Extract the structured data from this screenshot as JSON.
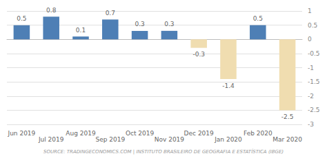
{
  "chart_data": {
    "type": "bar",
    "categories": [
      "Jun 2019",
      "Jul 2019",
      "Aug 2019",
      "Sep 2019",
      "Oct 2019",
      "Nov 2019",
      "Dec 2019",
      "Jan 2020",
      "Feb 2020",
      "Mar 2020"
    ],
    "values": [
      0.5,
      0.8,
      0.1,
      0.7,
      0.3,
      0.3,
      -0.3,
      -1.4,
      0.5,
      -2.5
    ],
    "colors": [
      "#4e7fb5",
      "#4e7fb5",
      "#4e7fb5",
      "#4e7fb5",
      "#4e7fb5",
      "#4e7fb5",
      "#f0ddb0",
      "#f0ddb0",
      "#4e7fb5",
      "#f0ddb0"
    ],
    "ylim": [
      -3,
      1
    ],
    "yticks": [
      1,
      0.5,
      0,
      -0.5,
      -1,
      -1.5,
      -2,
      -2.5,
      -3
    ],
    "grid": true,
    "data_labels": true,
    "annotations": [
      "SOURCE: TRADINGECONOMICS.COM | INSTITUTO BRASILEIRO DE GEOGRAFIA E ESTATÍSTICA (IBGE)"
    ]
  }
}
